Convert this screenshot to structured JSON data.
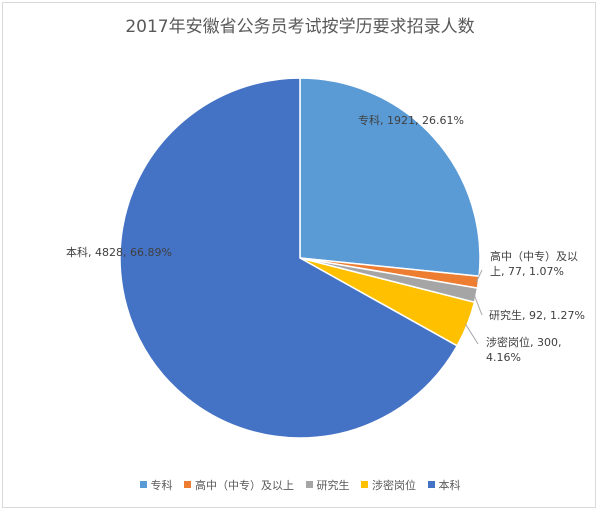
{
  "chart_data": {
    "type": "pie",
    "title": "2017年安徽省公务员考试按学历要求招录人数",
    "slices": [
      {
        "name": "专科",
        "value": 1921,
        "percent": "26.61%",
        "label_text": "专科, 1921, 26.61%",
        "color": "#5b9bd5"
      },
      {
        "name": "高中（中专）及以上",
        "value": 77,
        "percent": "1.07%",
        "label_line1": "高中（中专）及以",
        "label_line2": "上, 77, 1.07%",
        "color": "#ed7d31"
      },
      {
        "name": "研究生",
        "value": 92,
        "percent": "1.27%",
        "label_text": "研究生, 92, 1.27%",
        "color": "#a5a5a5"
      },
      {
        "name": "涉密岗位",
        "value": 300,
        "percent": "4.16%",
        "label_line1": "涉密岗位, 300,",
        "label_line2": "4.16%",
        "color": "#ffc000"
      },
      {
        "name": "本科",
        "value": 4828,
        "percent": "66.89%",
        "label_text": "本科, 4828, 66.89%",
        "color": "#4472c4"
      }
    ],
    "legend": [
      "专科",
      "高中（中专）及以上",
      "研究生",
      "涉密岗位",
      "本科"
    ],
    "legend_position": "bottom"
  }
}
